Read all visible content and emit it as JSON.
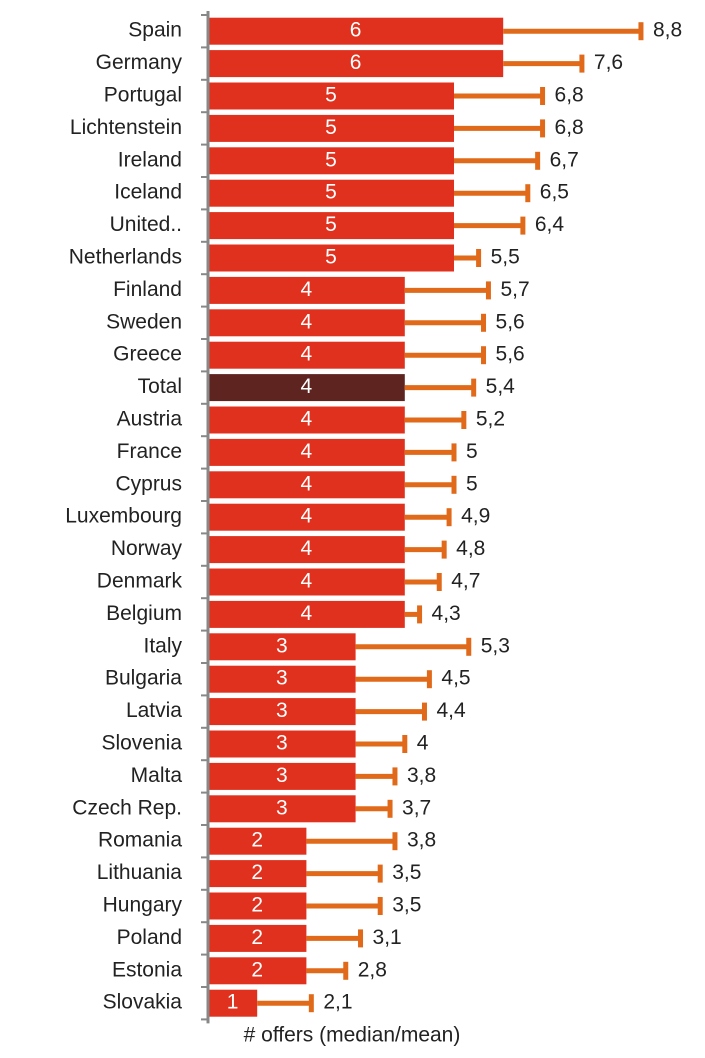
{
  "chart_data": {
    "type": "bar",
    "orientation": "horizontal",
    "x_label": "# offers (median/mean)",
    "categories": [
      "Spain",
      "Germany",
      "Portugal",
      "Lichtenstein",
      "Ireland",
      "Iceland",
      "United..",
      "Netherlands",
      "Finland",
      "Sweden",
      "Greece",
      "Total",
      "Austria",
      "France",
      "Cyprus",
      "Luxembourg",
      "Norway",
      "Denmark",
      "Belgium",
      "Italy",
      "Bulgaria",
      "Latvia",
      "Slovenia",
      "Malta",
      "Czech Rep.",
      "Romania",
      "Lithuania",
      "Hungary",
      "Poland",
      "Estonia",
      "Slovakia"
    ],
    "values": [
      6,
      6,
      5,
      5,
      5,
      5,
      5,
      5,
      4,
      4,
      4,
      4,
      4,
      4,
      4,
      4,
      4,
      4,
      4,
      3,
      3,
      3,
      3,
      3,
      3,
      2,
      2,
      2,
      2,
      2,
      1
    ],
    "means": [
      8.8,
      7.6,
      6.8,
      6.8,
      6.7,
      6.5,
      6.4,
      5.5,
      5.7,
      5.6,
      5.6,
      5.4,
      5.2,
      5,
      5,
      4.9,
      4.8,
      4.7,
      4.3,
      5.3,
      4.5,
      4.4,
      4,
      3.8,
      3.7,
      3.8,
      3.5,
      3.5,
      3.1,
      2.8,
      2.1
    ],
    "mean_labels": [
      "8,8",
      "7,6",
      "6,8",
      "6,8",
      "6,7",
      "6,5",
      "6,4",
      "5,5",
      "5,7",
      "5,6",
      "5,6",
      "5,4",
      "5,2",
      "5",
      "5",
      "4,9",
      "4,8",
      "4,7",
      "4,3",
      "5,3",
      "4,5",
      "4,4",
      "4",
      "3,8",
      "3,7",
      "3,8",
      "3,5",
      "3,5",
      "3,1",
      "2,8",
      "2,1"
    ],
    "colors": [
      "#e0311f",
      "#e0311f",
      "#e0311f",
      "#e0311f",
      "#e0311f",
      "#e0311f",
      "#e0311f",
      "#e0311f",
      "#e0311f",
      "#e0311f",
      "#e0311f",
      "#5e2420",
      "#e0311f",
      "#e0311f",
      "#e0311f",
      "#e0311f",
      "#e0311f",
      "#e0311f",
      "#e0311f",
      "#e0311f",
      "#e0311f",
      "#e0311f",
      "#e0311f",
      "#e0311f",
      "#e0311f",
      "#e0311f",
      "#e0311f",
      "#e0311f",
      "#e0311f",
      "#e0311f",
      "#e0311f"
    ],
    "whisker_color": "#e06a1a",
    "xlim": [
      0,
      10
    ]
  }
}
